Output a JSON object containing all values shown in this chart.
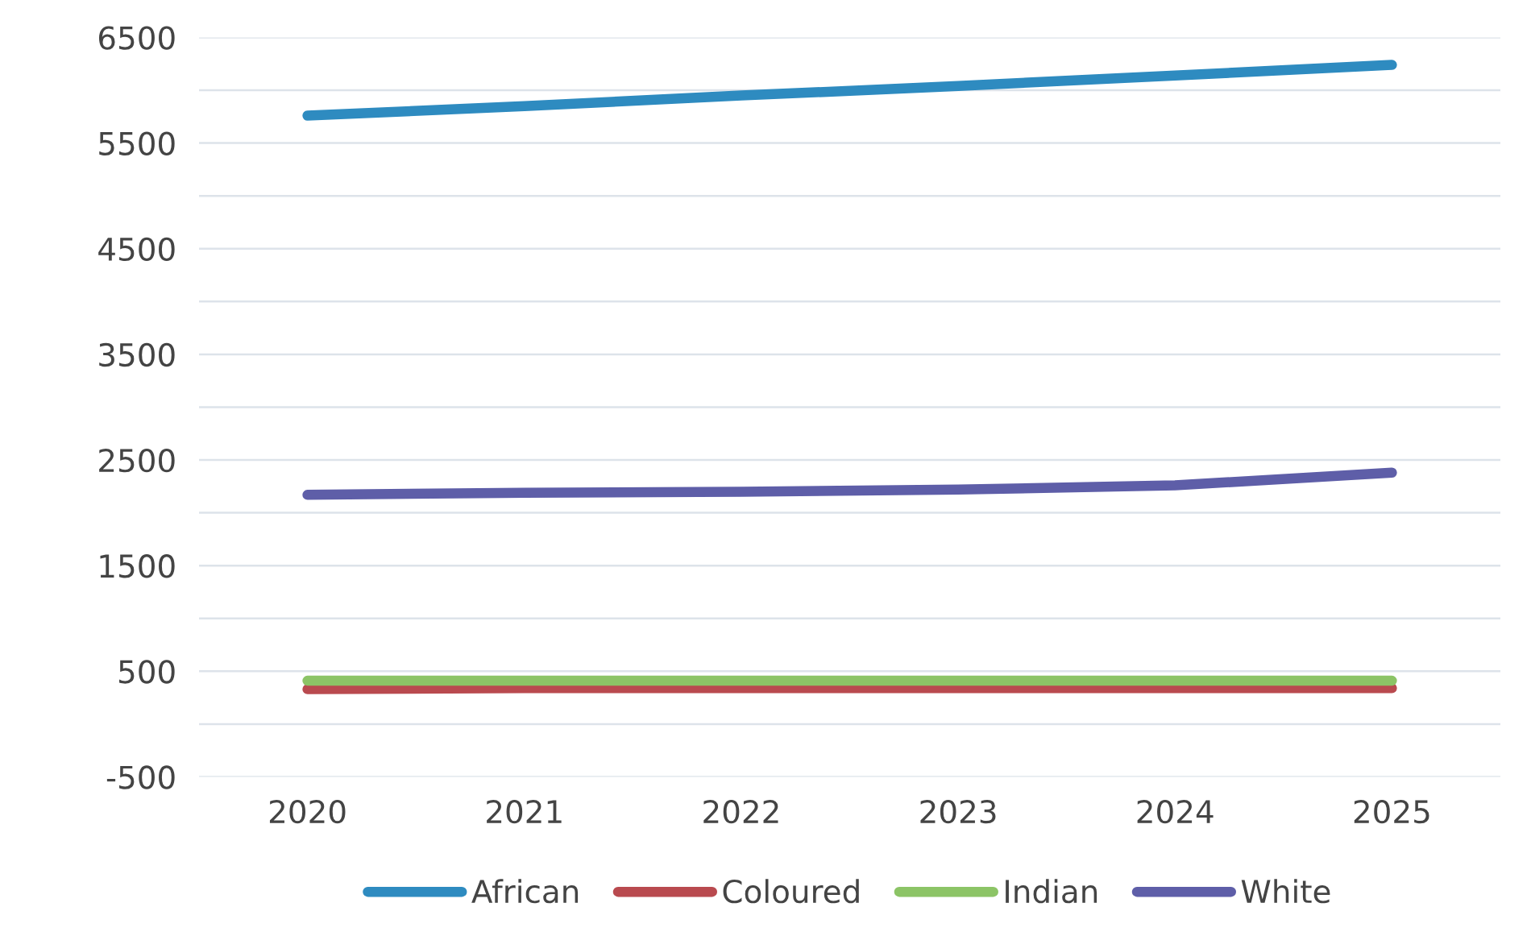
{
  "chart_data": {
    "type": "line",
    "categories": [
      "2020",
      "2021",
      "2022",
      "2023",
      "2024",
      "2025"
    ],
    "series": [
      {
        "name": "African",
        "color": "#2e8bc0",
        "values": [
          5760,
          5850,
          5950,
          6040,
          6140,
          6240
        ]
      },
      {
        "name": "Coloured",
        "color": "#b94a4f",
        "values": [
          330,
          340,
          340,
          340,
          340,
          340
        ]
      },
      {
        "name": "Indian",
        "color": "#8cc466",
        "values": [
          410,
          410,
          410,
          410,
          410,
          410
        ]
      },
      {
        "name": "White",
        "color": "#5e5ea8",
        "values": [
          2170,
          2190,
          2200,
          2220,
          2260,
          2380
        ]
      }
    ],
    "ylim": [
      -500,
      6500
    ],
    "yticks": [
      -500,
      {
        "value": 0,
        "label": null
      },
      500,
      {
        "value": 1000,
        "label": null
      },
      1500,
      {
        "value": 2000,
        "label": null
      },
      2500,
      {
        "value": 3000,
        "label": null
      },
      3500,
      {
        "value": 4000,
        "label": null
      },
      4500,
      {
        "value": 5000,
        "label": null
      },
      5500,
      {
        "value": 6000,
        "label": null
      },
      6500
    ],
    "grid": "y",
    "legend": "bottom",
    "marker": "none",
    "line_style": "solid"
  }
}
